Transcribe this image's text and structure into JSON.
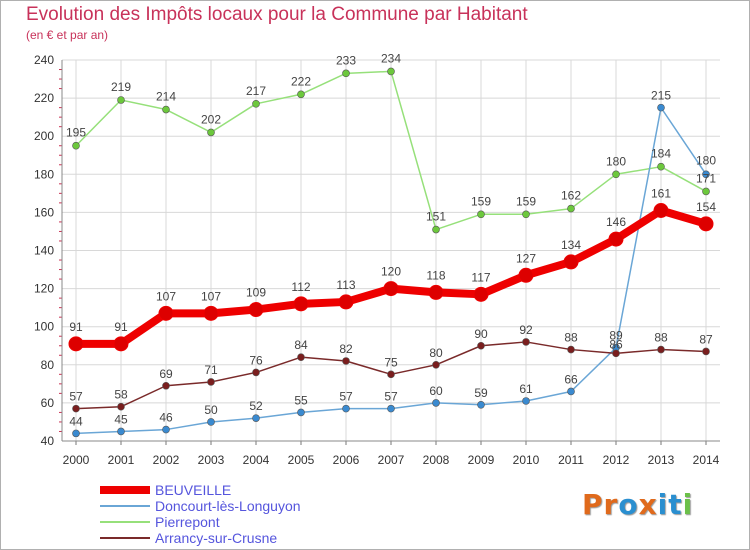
{
  "title": "Evolution des Impôts locaux pour la Commune par Habitant",
  "subtitle": "(en € et par an)",
  "logo": {
    "text": "Proxiti",
    "letters": [
      "P",
      "r",
      "o",
      "x",
      "i",
      "t",
      "i"
    ],
    "colors": [
      "#e06a1c",
      "#e06a1c",
      "#2a8fd0",
      "#e06a1c",
      "#2a8fd0",
      "#2a8fd0",
      "#6cc04a"
    ]
  },
  "chart_data": {
    "type": "line",
    "x": [
      2000,
      2001,
      2002,
      2003,
      2004,
      2005,
      2006,
      2007,
      2008,
      2009,
      2010,
      2011,
      2012,
      2013,
      2014
    ],
    "ylim": [
      40,
      240
    ],
    "yticks": [
      40,
      60,
      80,
      100,
      120,
      140,
      160,
      180,
      200,
      220,
      240
    ],
    "grid": true,
    "legend_position": "bottom-left",
    "series": [
      {
        "name": "BEUVEILLE",
        "color": "#ee0000",
        "values": [
          91,
          91,
          107,
          107,
          109,
          112,
          113,
          120,
          118,
          117,
          127,
          134,
          146,
          161,
          154
        ]
      },
      {
        "name": "Doncourt-lès-Longuyon",
        "color": "#6aa6d6",
        "values": [
          44,
          45,
          46,
          50,
          52,
          55,
          57,
          57,
          60,
          59,
          61,
          66,
          89,
          215,
          180
        ]
      },
      {
        "name": "Pierrepont",
        "color": "#96e07a",
        "values": [
          195,
          219,
          214,
          202,
          217,
          222,
          233,
          234,
          151,
          159,
          159,
          162,
          180,
          184,
          171
        ]
      },
      {
        "name": "Arrancy-sur-Crusne",
        "color": "#7a2a2a",
        "values": [
          57,
          58,
          69,
          71,
          76,
          84,
          82,
          75,
          80,
          90,
          92,
          88,
          86,
          88,
          87
        ]
      }
    ]
  }
}
